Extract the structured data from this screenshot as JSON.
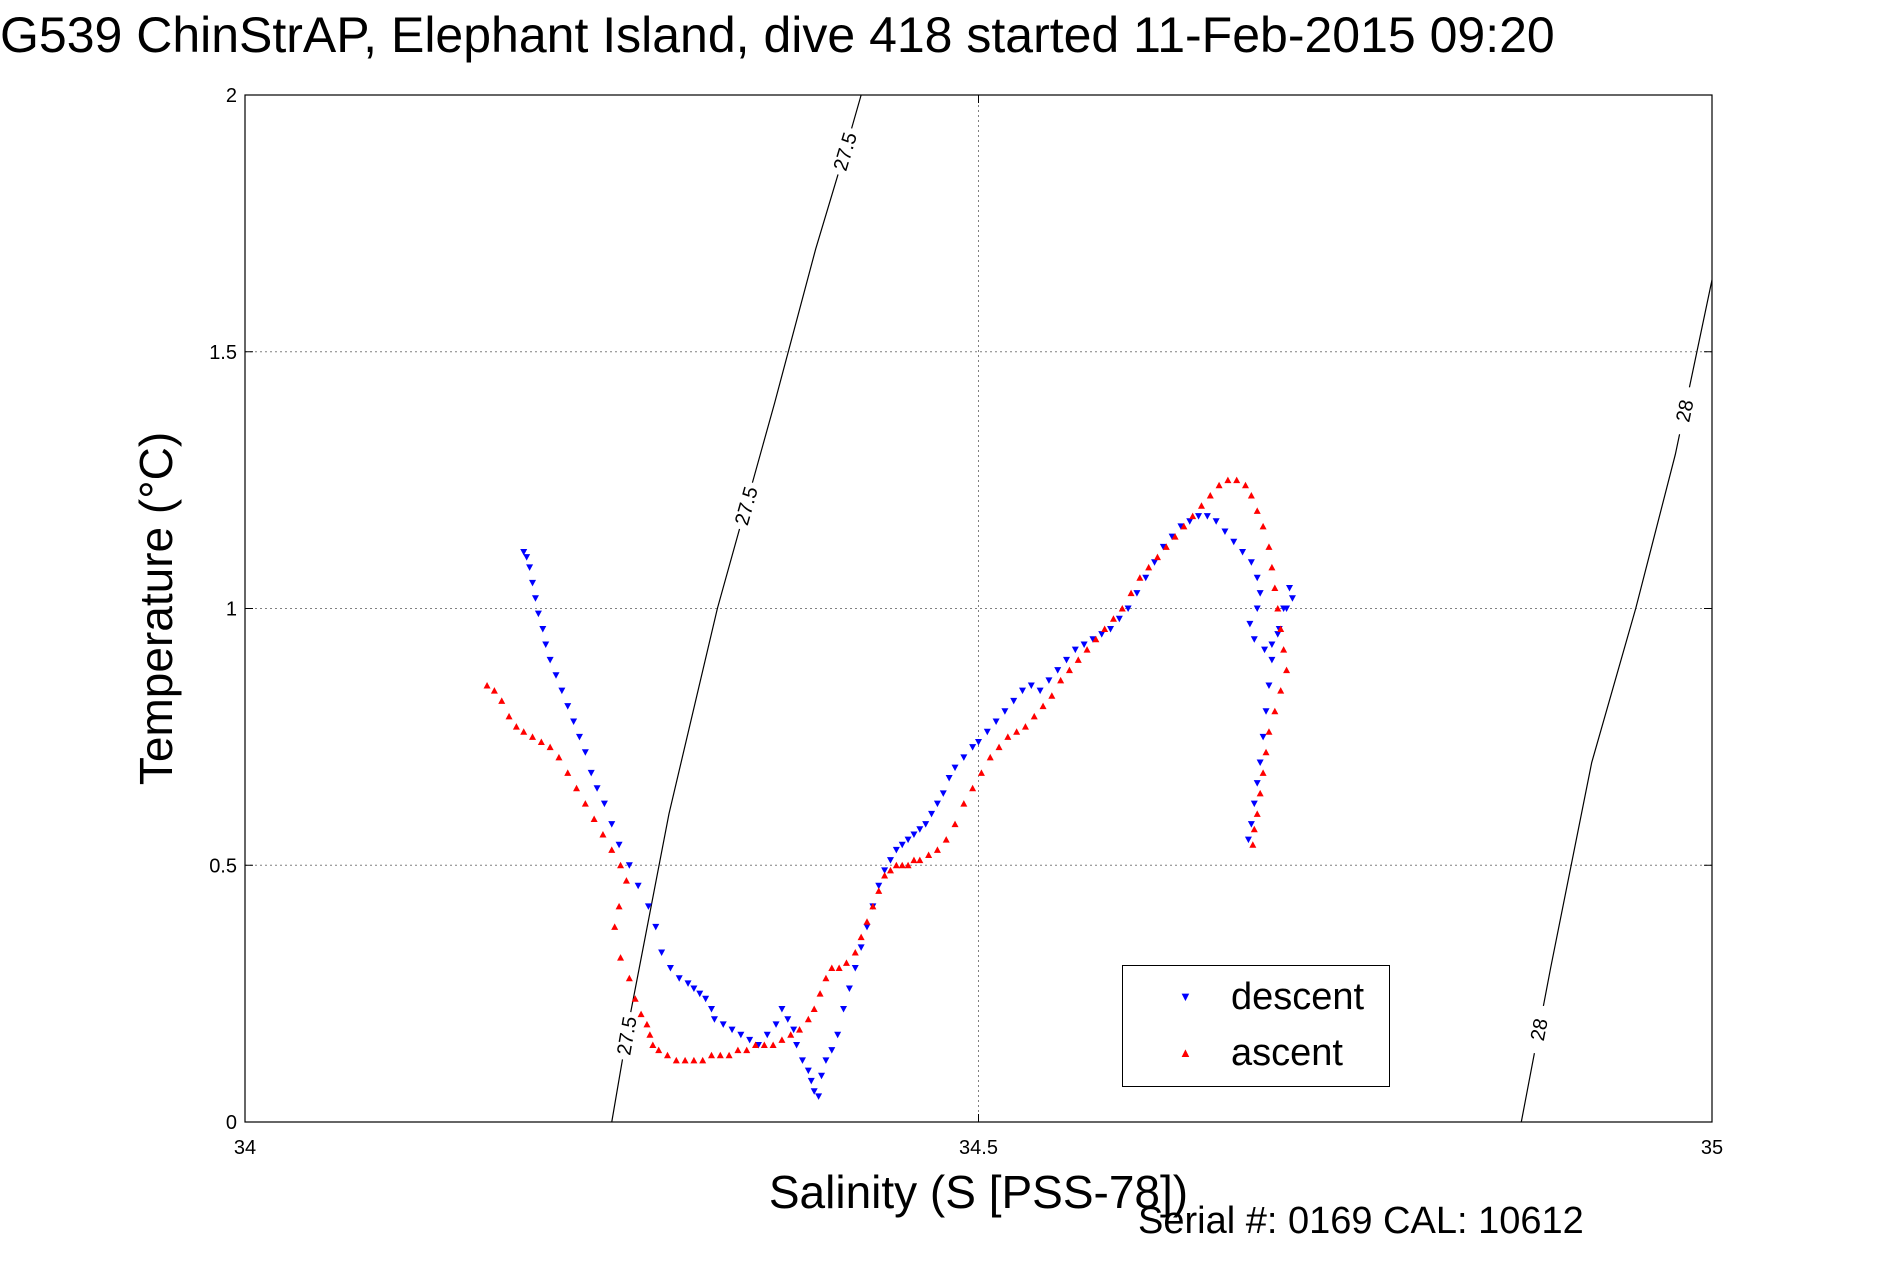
{
  "title": "G539 ChinStrAP, Elephant Island, dive 418 started 11-Feb-2015 09:20",
  "serial_text": "Serial #: 0169 CAL: 10612",
  "colors": {
    "descent": "#0000ff",
    "ascent": "#ff0000",
    "axis": "#000000",
    "grid": "#808080"
  },
  "chart_data": {
    "type": "scatter",
    "title": "G539 ChinStrAP, Elephant Island, dive 418 started 11-Feb-2015 09:20",
    "xlabel": "Salinity (S [PSS-78])",
    "ylabel": "Temperature (°C)",
    "xlim": [
      34,
      35
    ],
    "ylim": [
      0,
      2
    ],
    "x_ticks": [
      "34",
      "34.5",
      "35"
    ],
    "y_ticks": [
      "0",
      "0.5",
      "1",
      "1.5",
      "2"
    ],
    "grid": true,
    "legend_position": "bottom-right",
    "series": [
      {
        "name": "descent",
        "marker": "triangle-down",
        "color": "#0000ff",
        "x": [
          34.19,
          34.192,
          34.194,
          34.196,
          34.198,
          34.2,
          34.203,
          34.205,
          34.208,
          34.212,
          34.216,
          34.22,
          34.224,
          34.228,
          34.232,
          34.236,
          34.24,
          34.245,
          34.25,
          34.255,
          34.262,
          34.268,
          34.275,
          34.28,
          34.284,
          34.29,
          34.296,
          34.302,
          34.306,
          34.31,
          34.314,
          34.318,
          34.32,
          34.326,
          34.332,
          34.338,
          34.344,
          34.35,
          34.356,
          34.362,
          34.366,
          34.37,
          34.374,
          34.376,
          34.38,
          34.384,
          34.386,
          34.388,
          34.391,
          34.393,
          34.396,
          34.4,
          34.404,
          34.408,
          34.412,
          34.416,
          34.42,
          34.424,
          34.428,
          34.432,
          34.436,
          34.44,
          34.444,
          34.448,
          34.452,
          34.456,
          34.46,
          34.464,
          34.468,
          34.472,
          34.476,
          34.48,
          34.484,
          34.49,
          34.496,
          34.5,
          34.506,
          34.512,
          34.518,
          34.524,
          34.53,
          34.536,
          34.542,
          34.548,
          34.554,
          34.56,
          34.566,
          34.572,
          34.578,
          34.584,
          34.59,
          34.596,
          34.602,
          34.608,
          34.614,
          34.62,
          34.626,
          34.632,
          34.638,
          34.644,
          34.65,
          34.656,
          34.662,
          34.668,
          34.674,
          34.68,
          34.686,
          34.69,
          34.692,
          34.69,
          34.685,
          34.688,
          34.695,
          34.7,
          34.705,
          34.71,
          34.714,
          34.712,
          34.708,
          34.704,
          34.7,
          34.698,
          34.696,
          34.694,
          34.692,
          34.69,
          34.688,
          34.686,
          34.684
        ],
        "y": [
          1.11,
          1.1,
          1.08,
          1.05,
          1.02,
          0.99,
          0.96,
          0.93,
          0.9,
          0.87,
          0.84,
          0.81,
          0.78,
          0.75,
          0.72,
          0.68,
          0.65,
          0.62,
          0.58,
          0.54,
          0.5,
          0.46,
          0.42,
          0.38,
          0.33,
          0.3,
          0.28,
          0.27,
          0.26,
          0.25,
          0.24,
          0.22,
          0.2,
          0.19,
          0.18,
          0.17,
          0.16,
          0.15,
          0.17,
          0.19,
          0.22,
          0.2,
          0.18,
          0.15,
          0.12,
          0.1,
          0.08,
          0.06,
          0.05,
          0.09,
          0.12,
          0.14,
          0.17,
          0.22,
          0.26,
          0.3,
          0.34,
          0.38,
          0.42,
          0.46,
          0.49,
          0.51,
          0.53,
          0.54,
          0.55,
          0.56,
          0.57,
          0.58,
          0.6,
          0.62,
          0.64,
          0.67,
          0.69,
          0.71,
          0.73,
          0.74,
          0.76,
          0.78,
          0.8,
          0.82,
          0.84,
          0.85,
          0.84,
          0.86,
          0.88,
          0.9,
          0.92,
          0.93,
          0.94,
          0.95,
          0.96,
          0.98,
          1.0,
          1.03,
          1.06,
          1.09,
          1.12,
          1.14,
          1.16,
          1.17,
          1.18,
          1.18,
          1.17,
          1.15,
          1.13,
          1.11,
          1.09,
          1.06,
          1.03,
          1.0,
          0.97,
          0.94,
          0.92,
          0.93,
          0.96,
          1.0,
          1.02,
          1.04,
          1.0,
          0.95,
          0.9,
          0.85,
          0.8,
          0.75,
          0.7,
          0.66,
          0.62,
          0.58,
          0.55
        ]
      },
      {
        "name": "ascent",
        "marker": "triangle-up",
        "color": "#ff0000",
        "x": [
          34.165,
          34.17,
          34.175,
          34.18,
          34.185,
          34.19,
          34.196,
          34.202,
          34.208,
          34.214,
          34.22,
          34.226,
          34.232,
          34.238,
          34.244,
          34.25,
          34.256,
          34.26,
          34.255,
          34.252,
          34.256,
          34.262,
          34.266,
          34.27,
          34.274,
          34.276,
          34.278,
          34.282,
          34.288,
          34.294,
          34.3,
          34.306,
          34.312,
          34.318,
          34.324,
          34.33,
          34.336,
          34.342,
          34.348,
          34.354,
          34.36,
          34.366,
          34.372,
          34.378,
          34.384,
          34.388,
          34.392,
          34.396,
          34.4,
          34.405,
          34.41,
          34.416,
          34.42,
          34.424,
          34.428,
          34.432,
          34.436,
          34.44,
          34.444,
          34.448,
          34.452,
          34.456,
          34.46,
          34.466,
          34.472,
          34.478,
          34.484,
          34.49,
          34.496,
          34.502,
          34.508,
          34.514,
          34.52,
          34.526,
          34.532,
          34.538,
          34.544,
          34.55,
          34.556,
          34.562,
          34.568,
          34.574,
          34.58,
          34.586,
          34.592,
          34.598,
          34.604,
          34.61,
          34.616,
          34.622,
          34.628,
          34.634,
          34.64,
          34.646,
          34.652,
          34.658,
          34.664,
          34.67,
          34.676,
          34.682,
          34.686,
          34.69,
          34.694,
          34.698,
          34.7,
          34.702,
          34.704,
          34.706,
          34.708,
          34.71,
          34.706,
          34.702,
          34.698,
          34.696,
          34.694,
          34.692,
          34.69,
          34.688,
          34.687
        ],
        "y": [
          0.85,
          0.84,
          0.82,
          0.79,
          0.77,
          0.76,
          0.75,
          0.74,
          0.73,
          0.71,
          0.68,
          0.65,
          0.62,
          0.59,
          0.56,
          0.53,
          0.5,
          0.47,
          0.42,
          0.38,
          0.32,
          0.28,
          0.24,
          0.21,
          0.19,
          0.17,
          0.15,
          0.14,
          0.13,
          0.12,
          0.12,
          0.12,
          0.12,
          0.13,
          0.13,
          0.13,
          0.14,
          0.14,
          0.15,
          0.15,
          0.15,
          0.16,
          0.17,
          0.18,
          0.2,
          0.22,
          0.25,
          0.28,
          0.3,
          0.3,
          0.31,
          0.33,
          0.36,
          0.39,
          0.42,
          0.45,
          0.48,
          0.49,
          0.5,
          0.5,
          0.5,
          0.51,
          0.51,
          0.52,
          0.53,
          0.55,
          0.58,
          0.62,
          0.65,
          0.68,
          0.71,
          0.73,
          0.75,
          0.76,
          0.77,
          0.79,
          0.81,
          0.83,
          0.86,
          0.88,
          0.9,
          0.92,
          0.94,
          0.96,
          0.98,
          1.0,
          1.03,
          1.06,
          1.08,
          1.1,
          1.12,
          1.14,
          1.16,
          1.18,
          1.2,
          1.22,
          1.24,
          1.25,
          1.25,
          1.24,
          1.22,
          1.19,
          1.16,
          1.12,
          1.08,
          1.04,
          1.0,
          0.96,
          0.92,
          0.88,
          0.84,
          0.8,
          0.76,
          0.72,
          0.68,
          0.64,
          0.6,
          0.57,
          0.54
        ]
      }
    ],
    "contours": [
      {
        "value": "27.5",
        "labels": [
          "27.5",
          "27.5",
          "27.5"
        ],
        "points": [
          [
            34.25,
            0.0
          ],
          [
            34.262,
            0.2
          ],
          [
            34.289,
            0.6
          ],
          [
            34.322,
            1.0
          ],
          [
            34.361,
            1.4
          ],
          [
            34.389,
            1.7
          ],
          [
            34.41,
            1.9
          ],
          [
            34.42,
            2.0
          ]
        ]
      },
      {
        "value": "28",
        "labels": [
          "28",
          "28"
        ],
        "points": [
          [
            34.87,
            0.0
          ],
          [
            34.89,
            0.3
          ],
          [
            34.918,
            0.7
          ],
          [
            34.948,
            1.0
          ],
          [
            34.975,
            1.3
          ],
          [
            35.0,
            1.64
          ]
        ]
      }
    ]
  }
}
